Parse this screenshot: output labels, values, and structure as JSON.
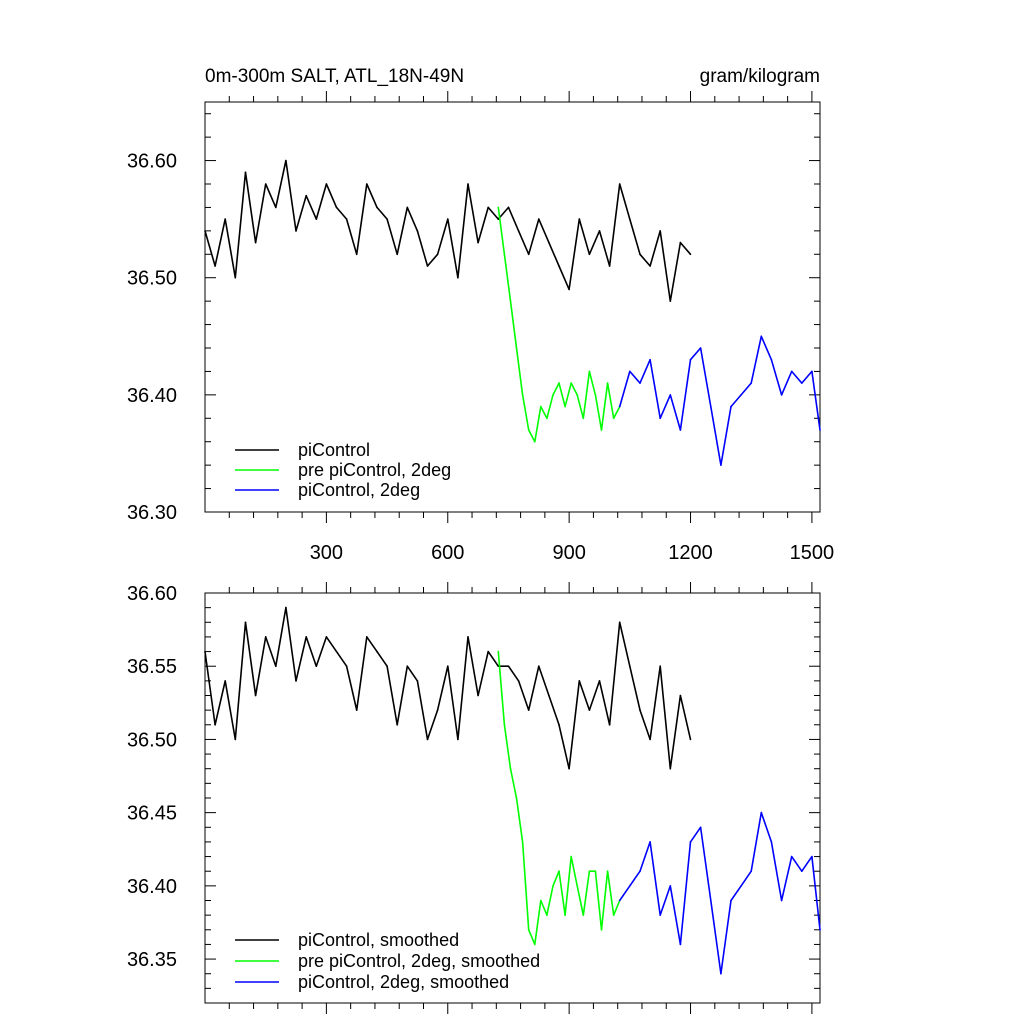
{
  "chart_data": [
    {
      "type": "line",
      "title": "0m-300m SALT, ATL_18N-49N",
      "units": "gram/kilogram",
      "xlim": [
        0,
        1520
      ],
      "ylim": [
        36.3,
        36.65
      ],
      "x_tick_labels": [
        "300",
        "600",
        "900",
        "1200",
        "1500"
      ],
      "x_tick_values": [
        300,
        600,
        900,
        1200,
        1500
      ],
      "y_tick_labels": [
        "36.30",
        "36.40",
        "36.50",
        "36.60"
      ],
      "y_tick_values": [
        36.3,
        36.4,
        36.5,
        36.6
      ],
      "legend": [
        "piControl",
        "pre piControl, 2deg",
        "piControl, 2deg"
      ],
      "legend_placement": "bottom-left",
      "grid": false,
      "series": [
        {
          "name": "piControl",
          "color": "#000000",
          "x": [
            0,
            25,
            50,
            75,
            100,
            125,
            150,
            175,
            200,
            225,
            250,
            275,
            300,
            325,
            350,
            375,
            400,
            425,
            450,
            475,
            500,
            525,
            550,
            575,
            600,
            625,
            650,
            675,
            700,
            725,
            750,
            775,
            800,
            825,
            850,
            875,
            900,
            925,
            950,
            975,
            1000,
            1025,
            1050,
            1075,
            1100,
            1125,
            1150,
            1175,
            1200
          ],
          "y": [
            36.54,
            36.51,
            36.55,
            36.5,
            36.59,
            36.53,
            36.58,
            36.56,
            36.6,
            36.54,
            36.57,
            36.55,
            36.58,
            36.56,
            36.55,
            36.52,
            36.58,
            36.56,
            36.55,
            36.52,
            36.56,
            36.54,
            36.51,
            36.52,
            36.55,
            36.5,
            36.58,
            36.53,
            36.56,
            36.55,
            36.56,
            36.54,
            36.52,
            36.55,
            36.53,
            36.51,
            36.49,
            36.55,
            36.52,
            36.54,
            36.51,
            36.58,
            36.55,
            36.52,
            36.51,
            36.54,
            36.48,
            36.53,
            36.52
          ]
        },
        {
          "name": "pre piControl, 2deg",
          "color": "#00ff00",
          "x": [
            725,
            740,
            755,
            770,
            785,
            800,
            815,
            830,
            845,
            860,
            875,
            890,
            905,
            920,
            935,
            950,
            965,
            980,
            995,
            1010,
            1025
          ],
          "y": [
            36.56,
            36.52,
            36.48,
            36.44,
            36.4,
            36.37,
            36.36,
            36.39,
            36.38,
            36.4,
            36.41,
            36.39,
            36.41,
            36.4,
            36.38,
            36.42,
            36.4,
            36.37,
            36.41,
            36.38,
            36.39
          ]
        },
        {
          "name": "piControl, 2deg",
          "color": "#0000ff",
          "x": [
            1025,
            1050,
            1075,
            1100,
            1125,
            1150,
            1175,
            1200,
            1225,
            1250,
            1275,
            1300,
            1325,
            1350,
            1375,
            1400,
            1425,
            1450,
            1475,
            1500,
            1520
          ],
          "y": [
            36.39,
            36.42,
            36.41,
            36.43,
            36.38,
            36.4,
            36.37,
            36.43,
            36.44,
            36.39,
            36.34,
            36.39,
            36.4,
            36.41,
            36.45,
            36.43,
            36.4,
            36.42,
            36.41,
            36.42,
            36.37
          ]
        }
      ]
    },
    {
      "type": "line",
      "xlim": [
        0,
        1520
      ],
      "ylim": [
        36.32,
        36.6
      ],
      "y_tick_labels": [
        "36.35",
        "36.40",
        "36.45",
        "36.50",
        "36.55",
        "36.60"
      ],
      "y_tick_values": [
        36.35,
        36.4,
        36.45,
        36.5,
        36.55,
        36.6
      ],
      "x_tick_values": [
        300,
        600,
        900,
        1200,
        1500
      ],
      "legend": [
        "piControl, smoothed",
        "pre piControl, 2deg, smoothed",
        "piControl, 2deg, smoothed"
      ],
      "legend_placement": "bottom-left",
      "grid": false,
      "series": [
        {
          "name": "piControl, smoothed",
          "color": "#000000",
          "x": [
            0,
            25,
            50,
            75,
            100,
            125,
            150,
            175,
            200,
            225,
            250,
            275,
            300,
            325,
            350,
            375,
            400,
            425,
            450,
            475,
            500,
            525,
            550,
            575,
            600,
            625,
            650,
            675,
            700,
            725,
            750,
            775,
            800,
            825,
            850,
            875,
            900,
            925,
            950,
            975,
            1000,
            1025,
            1050,
            1075,
            1100,
            1125,
            1150,
            1175,
            1200
          ],
          "y": [
            36.56,
            36.51,
            36.54,
            36.5,
            36.58,
            36.53,
            36.57,
            36.55,
            36.59,
            36.54,
            36.57,
            36.55,
            36.57,
            36.56,
            36.55,
            36.52,
            36.57,
            36.56,
            36.55,
            36.51,
            36.55,
            36.54,
            36.5,
            36.52,
            36.55,
            36.5,
            36.57,
            36.53,
            36.56,
            36.55,
            36.55,
            36.54,
            36.52,
            36.55,
            36.53,
            36.51,
            36.48,
            36.54,
            36.52,
            36.54,
            36.51,
            36.58,
            36.55,
            36.52,
            36.5,
            36.55,
            36.48,
            36.53,
            36.5
          ]
        },
        {
          "name": "pre piControl, 2deg, smoothed",
          "color": "#00ff00",
          "x": [
            725,
            740,
            755,
            770,
            785,
            800,
            815,
            830,
            845,
            860,
            875,
            890,
            905,
            920,
            935,
            950,
            965,
            980,
            995,
            1010,
            1025
          ],
          "y": [
            36.56,
            36.51,
            36.48,
            36.46,
            36.43,
            36.37,
            36.36,
            36.39,
            36.38,
            36.4,
            36.41,
            36.38,
            36.42,
            36.4,
            36.38,
            36.41,
            36.41,
            36.37,
            36.41,
            36.38,
            36.39
          ]
        },
        {
          "name": "piControl, 2deg, smoothed",
          "color": "#0000ff",
          "x": [
            1025,
            1050,
            1075,
            1100,
            1125,
            1150,
            1175,
            1200,
            1225,
            1250,
            1275,
            1300,
            1325,
            1350,
            1375,
            1400,
            1425,
            1450,
            1475,
            1500,
            1520
          ],
          "y": [
            36.39,
            36.4,
            36.41,
            36.43,
            36.38,
            36.4,
            36.36,
            36.43,
            36.44,
            36.39,
            36.34,
            36.39,
            36.4,
            36.41,
            36.45,
            36.43,
            36.39,
            36.42,
            36.41,
            36.42,
            36.37
          ]
        }
      ]
    }
  ]
}
